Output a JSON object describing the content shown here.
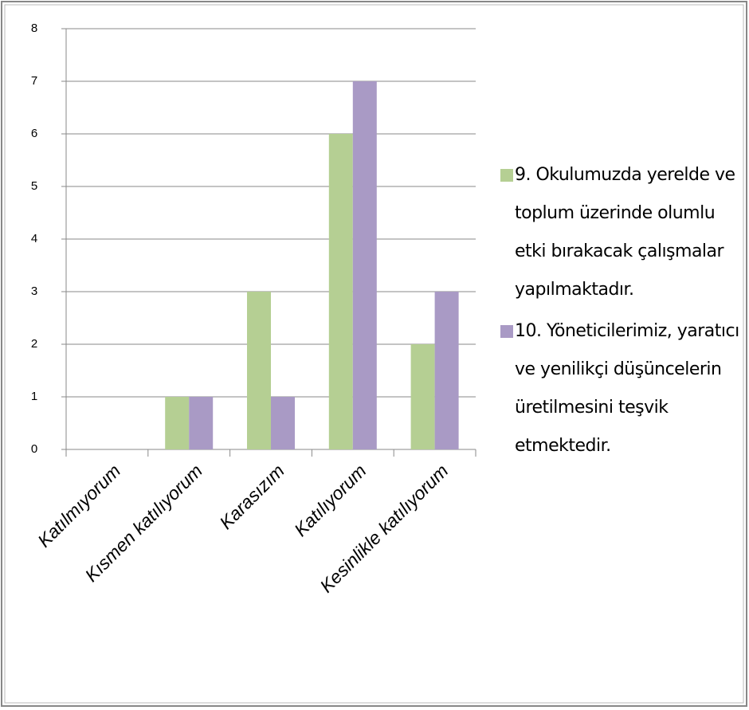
{
  "chart_data": {
    "type": "bar",
    "categories": [
      "Katılmıyorum",
      "Kısmen katılıyorum",
      "Karasızım",
      "Katılıyorum",
      "Kesinlikle katılıyorum"
    ],
    "series": [
      {
        "name": "9. Okulumuzda yerelde ve toplum üzerinde olumlu etki bırakacak çalışmalar yapılmaktadır.",
        "color": "#b5cf93",
        "values": [
          0,
          1,
          3,
          6,
          2
        ]
      },
      {
        "name": "10. Yöneticilerimiz, yaratıcı ve yenilikçi düşüncelerin üretilmesini teşvik etmektedir.",
        "color": "#a99ac5",
        "values": [
          0,
          1,
          1,
          7,
          3
        ]
      }
    ],
    "ylim": [
      0,
      8
    ],
    "yticks": [
      0,
      1,
      2,
      3,
      4,
      5,
      6,
      7,
      8
    ],
    "grid": true,
    "legend": "right"
  }
}
